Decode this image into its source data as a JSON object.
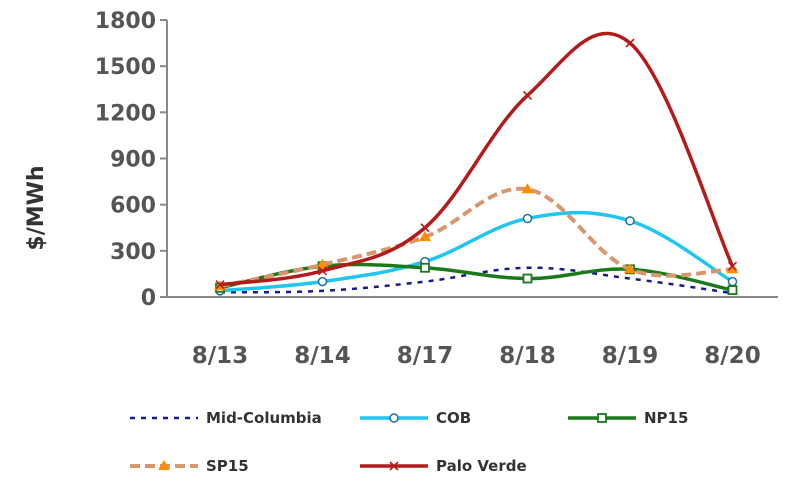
{
  "chart_data": {
    "type": "line",
    "title": "",
    "xlabel": "",
    "ylabel": "$/MWh",
    "categories": [
      "8/13",
      "8/14",
      "8/17",
      "8/18",
      "8/19",
      "8/20"
    ],
    "ylim": [
      0,
      1800
    ],
    "yticks": [
      0,
      300,
      600,
      900,
      1200,
      1500,
      1800
    ],
    "legend_position": "bottom",
    "grid": false,
    "series": [
      {
        "name": "Mid-Columbia",
        "values": [
          30,
          40,
          100,
          190,
          120,
          25
        ],
        "color": "#1a1a8c",
        "style": "dotted",
        "marker": "none"
      },
      {
        "name": "COB",
        "values": [
          40,
          100,
          230,
          510,
          495,
          100
        ],
        "color": "#22c4f0",
        "style": "solid",
        "marker": "circle"
      },
      {
        "name": "NP15",
        "values": [
          60,
          200,
          190,
          120,
          180,
          45
        ],
        "color": "#1a7a1a",
        "style": "solid",
        "marker": "square"
      },
      {
        "name": "SP15",
        "values": [
          70,
          210,
          390,
          700,
          180,
          180
        ],
        "color": "#d9956b",
        "style": "dashed",
        "marker": "triangle",
        "marker_color": "#ff8c00"
      },
      {
        "name": "Palo Verde",
        "values": [
          80,
          170,
          450,
          1310,
          1650,
          200
        ],
        "color": "#b31b1b",
        "style": "solid",
        "marker": "x"
      }
    ]
  }
}
